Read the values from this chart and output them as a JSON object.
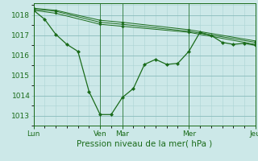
{
  "xlabel": "Pression niveau de la mer( hPa )",
  "bg_color": "#cce8e8",
  "grid_color_major": "#88bbbb",
  "grid_color_minor": "#aad4d4",
  "line_color": "#1a6b1a",
  "ylim": [
    1012.5,
    1018.6
  ],
  "yticks": [
    1013,
    1014,
    1015,
    1016,
    1017,
    1018
  ],
  "xtick_labels": [
    "Lun",
    "Ven",
    "Mar",
    "Mer",
    "Jeu"
  ],
  "xtick_positions": [
    0,
    3.0,
    4.0,
    7.0,
    10.0
  ],
  "x_total": 10.0,
  "series_main": {
    "x": [
      0,
      0.5,
      1.0,
      1.5,
      2.0,
      2.5,
      3.0,
      3.5,
      4.0,
      4.5,
      5.0,
      5.5,
      6.0,
      6.5,
      7.0,
      7.5,
      8.0,
      8.5,
      9.0,
      9.5,
      10.0
    ],
    "y": [
      1018.25,
      1017.8,
      1017.05,
      1016.55,
      1016.2,
      1014.2,
      1013.05,
      1013.05,
      1013.9,
      1014.35,
      1015.55,
      1015.8,
      1015.55,
      1015.6,
      1016.2,
      1017.15,
      1017.0,
      1016.65,
      1016.55,
      1016.6,
      1016.5
    ]
  },
  "series_trend1": {
    "x": [
      0,
      1.0,
      3.0,
      4.0,
      7.0,
      10.0
    ],
    "y": [
      1018.25,
      1018.1,
      1017.55,
      1017.45,
      1017.15,
      1016.55
    ]
  },
  "series_trend2": {
    "x": [
      0,
      1.0,
      3.0,
      4.0,
      7.0,
      10.0
    ],
    "y": [
      1018.3,
      1018.2,
      1017.65,
      1017.55,
      1017.2,
      1016.65
    ]
  },
  "series_trend3": {
    "x": [
      0,
      1.0,
      3.0,
      4.0,
      7.0,
      10.0
    ],
    "y": [
      1018.35,
      1018.25,
      1017.75,
      1017.65,
      1017.28,
      1016.72
    ]
  }
}
